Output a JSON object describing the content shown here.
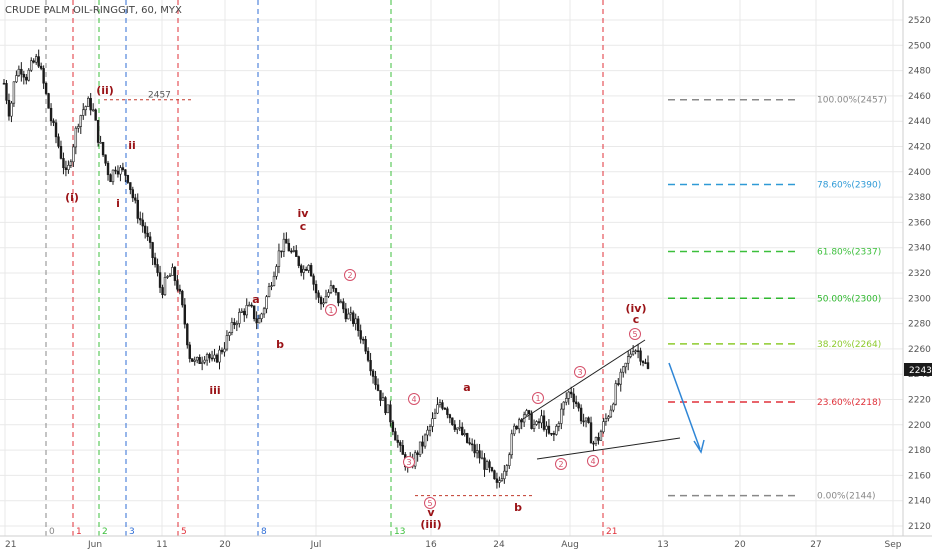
{
  "title": "CRUDE PALM OIL-RINGGIT, 60, MYX",
  "current_price": "2243",
  "y_ticks": [
    "2520",
    "2500",
    "2480",
    "2460",
    "2440",
    "2420",
    "2400",
    "2380",
    "2360",
    "2340",
    "2320",
    "2300",
    "2280",
    "2260",
    "2240",
    "2220",
    "2200",
    "2180",
    "2160",
    "2140",
    "2120"
  ],
  "x_ticks": [
    "21",
    "Jun",
    "11",
    "20",
    "Jul",
    "16",
    "24",
    "Aug",
    "13",
    "20",
    "27",
    "Sep"
  ],
  "colors": {
    "up": "#1a1a1a",
    "wave": "#9a1216",
    "circle": "#d5506a",
    "arrow": "#2f86d6",
    "grid": "#e9e9e9"
  },
  "vlines": [
    {
      "label": "0",
      "color": "#888888"
    },
    {
      "label": "1",
      "color": "#e0313a"
    },
    {
      "label": "2",
      "color": "#3cbf3c"
    },
    {
      "label": "3",
      "color": "#2f6ed6"
    },
    {
      "label": "5",
      "color": "#e0313a"
    },
    {
      "label": "8",
      "color": "#2f6ed6"
    },
    {
      "label": "13",
      "color": "#3cbf3c"
    },
    {
      "label": "21",
      "color": "#e0313a"
    }
  ],
  "fib_levels": [
    {
      "label": "100.00%(2457)",
      "value": 2457,
      "color": "#888888"
    },
    {
      "label": "78.60%(2390)",
      "value": 2390,
      "color": "#2f9ad6"
    },
    {
      "label": "61.80%(2337)",
      "value": 2337,
      "color": "#3cbf3c"
    },
    {
      "label": "50.00%(2300)",
      "value": 2300,
      "color": "#2fb82f"
    },
    {
      "label": "38.20%(2264)",
      "value": 2264,
      "color": "#8ecb2f"
    },
    {
      "label": "23.60%(2218)",
      "value": 2218,
      "color": "#e0313a"
    },
    {
      "label": "0.00%(2144)",
      "value": 2144,
      "color": "#888888"
    }
  ],
  "annotations": {
    "high_price": "2457",
    "waves": [
      "(i)",
      "(ii)",
      "i",
      "ii",
      "iii",
      "a",
      "b",
      "iv",
      "c",
      "v",
      "(iii)",
      "a",
      "b",
      "c",
      "(iv)"
    ],
    "circles": [
      "1",
      "2",
      "3",
      "4",
      "5",
      "1",
      "2",
      "3",
      "4",
      "5"
    ]
  },
  "chart_data": {
    "type": "candlestick",
    "title": "CRUDE PALM OIL-RINGGIT, 60, MYX",
    "ylim": [
      2115,
      2525
    ],
    "x_labels": [
      "21",
      "Jun",
      "11",
      "20",
      "Jul",
      "16",
      "24",
      "Aug",
      "13",
      "20",
      "27",
      "Sep"
    ],
    "close_path": [
      [
        0,
        2470
      ],
      [
        3,
        2445
      ],
      [
        6,
        2478
      ],
      [
        9,
        2482
      ],
      [
        12,
        2475
      ],
      [
        15,
        2485
      ],
      [
        18,
        2490
      ],
      [
        20,
        2475
      ],
      [
        22,
        2462
      ],
      [
        25,
        2440
      ],
      [
        28,
        2425
      ],
      [
        31,
        2408
      ],
      [
        33,
        2395
      ],
      [
        36,
        2418
      ],
      [
        39,
        2440
      ],
      [
        42,
        2450
      ],
      [
        45,
        2455
      ],
      [
        47,
        2448
      ],
      [
        50,
        2425
      ],
      [
        53,
        2410
      ],
      [
        56,
        2395
      ],
      [
        59,
        2405
      ],
      [
        62,
        2400
      ],
      [
        65,
        2398
      ],
      [
        68,
        2380
      ],
      [
        71,
        2365
      ],
      [
        74,
        2355
      ],
      [
        77,
        2340
      ],
      [
        80,
        2325
      ],
      [
        83,
        2305
      ],
      [
        86,
        2315
      ],
      [
        89,
        2320
      ],
      [
        92,
        2308
      ],
      [
        95,
        2285
      ],
      [
        98,
        2255
      ],
      [
        101,
        2248
      ],
      [
        104,
        2252
      ],
      [
        107,
        2258
      ],
      [
        110,
        2248
      ],
      [
        113,
        2255
      ],
      [
        116,
        2262
      ],
      [
        119,
        2272
      ],
      [
        122,
        2282
      ],
      [
        125,
        2288
      ],
      [
        128,
        2292
      ],
      [
        131,
        2290
      ],
      [
        134,
        2280
      ],
      [
        137,
        2292
      ],
      [
        140,
        2308
      ],
      [
        143,
        2325
      ],
      [
        146,
        2340
      ],
      [
        149,
        2343
      ],
      [
        152,
        2335
      ],
      [
        155,
        2330
      ],
      [
        158,
        2322
      ],
      [
        161,
        2330
      ],
      [
        164,
        2308
      ],
      [
        167,
        2295
      ],
      [
        170,
        2302
      ],
      [
        173,
        2308
      ],
      [
        176,
        2300
      ],
      [
        179,
        2292
      ],
      [
        182,
        2285
      ],
      [
        185,
        2282
      ],
      [
        188,
        2272
      ],
      [
        191,
        2262
      ],
      [
        194,
        2245
      ],
      [
        197,
        2230
      ],
      [
        200,
        2218
      ],
      [
        203,
        2210
      ],
      [
        206,
        2195
      ],
      [
        209,
        2180
      ],
      [
        212,
        2170
      ],
      [
        215,
        2168
      ],
      [
        218,
        2178
      ],
      [
        221,
        2185
      ],
      [
        224,
        2195
      ],
      [
        227,
        2205
      ],
      [
        230,
        2218
      ],
      [
        233,
        2215
      ],
      [
        236,
        2205
      ],
      [
        239,
        2198
      ],
      [
        242,
        2192
      ],
      [
        245,
        2185
      ],
      [
        248,
        2180
      ],
      [
        251,
        2175
      ],
      [
        254,
        2168
      ],
      [
        257,
        2162
      ],
      [
        260,
        2150
      ],
      [
        263,
        2162
      ],
      [
        266,
        2175
      ],
      [
        269,
        2195
      ],
      [
        272,
        2205
      ],
      [
        275,
        2210
      ],
      [
        278,
        2202
      ],
      [
        281,
        2198
      ],
      [
        284,
        2205
      ],
      [
        287,
        2192
      ],
      [
        290,
        2190
      ],
      [
        293,
        2205
      ],
      [
        296,
        2218
      ],
      [
        299,
        2228
      ],
      [
        302,
        2218
      ],
      [
        305,
        2205
      ],
      [
        308,
        2200
      ],
      [
        311,
        2185
      ],
      [
        314,
        2190
      ],
      [
        317,
        2202
      ],
      [
        320,
        2212
      ],
      [
        323,
        2228
      ],
      [
        326,
        2238
      ],
      [
        329,
        2250
      ],
      [
        332,
        2262
      ],
      [
        335,
        2258
      ],
      [
        338,
        2250
      ],
      [
        340,
        2243
      ]
    ]
  }
}
